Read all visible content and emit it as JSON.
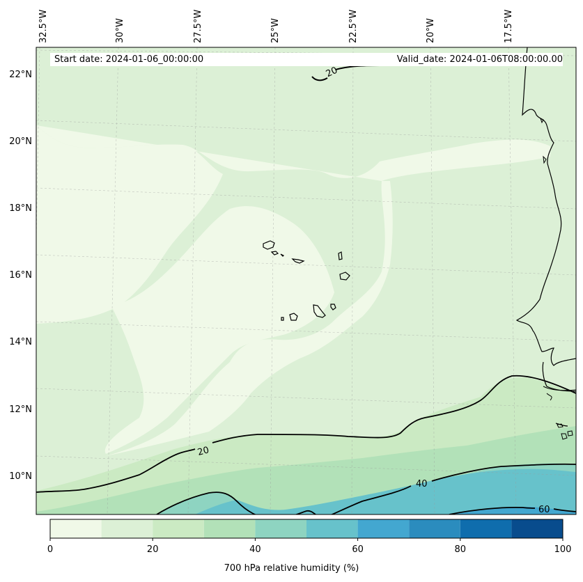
{
  "header": {
    "start_date": "Start date: 2024-01-06_00:00:00",
    "valid_date": "Valid_date: 2024-01-06T08:00:00.00"
  },
  "map": {
    "variable": "700 hPa relative humidity (%)",
    "lon_labels": [
      "32.5°W",
      "30°W",
      "27.5°W",
      "25°W",
      "22.5°W",
      "20°W",
      "17.5°W"
    ],
    "lat_labels": [
      "22°N",
      "20°N",
      "18°N",
      "16°N",
      "14°N",
      "12°N",
      "10°N"
    ],
    "contour_labels": [
      "20",
      "20",
      "40",
      "60"
    ],
    "colors": {
      "rh_0_10": "#f0f9e8",
      "rh_10_20": "#dcf0d6",
      "rh_20_30": "#cbeac3",
      "rh_30_40": "#b2e1b8",
      "rh_40_50": "#8ed4c1",
      "rh_50_60": "#67c2cb",
      "rh_60_70": "#43a7d0",
      "rh_70_80": "#2b8cbe",
      "rh_80_90": "#0f6dad",
      "rh_90_100": "#084c8d"
    }
  },
  "colorbar": {
    "ticks": [
      "0",
      "20",
      "40",
      "60",
      "80",
      "100"
    ],
    "label": "700 hPa relative humidity (%)"
  }
}
